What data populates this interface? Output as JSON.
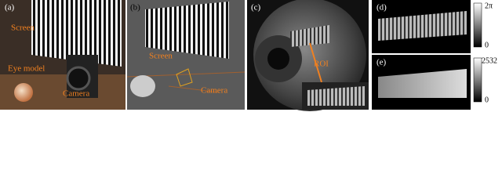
{
  "panels": {
    "a": {
      "tag": "(a)",
      "labels": [
        "Screen",
        "Eye model",
        "Camera"
      ]
    },
    "b": {
      "tag": "(b)",
      "labels": [
        "Screen",
        "Camera"
      ]
    },
    "c": {
      "tag": "(c)",
      "labels": [
        "ROI"
      ]
    },
    "d": {
      "tag": "(d)",
      "colorbar": {
        "max": "2π",
        "min": "0"
      }
    },
    "e": {
      "tag": "(e)",
      "colorbar": {
        "max": "2532",
        "min": "0"
      }
    }
  }
}
